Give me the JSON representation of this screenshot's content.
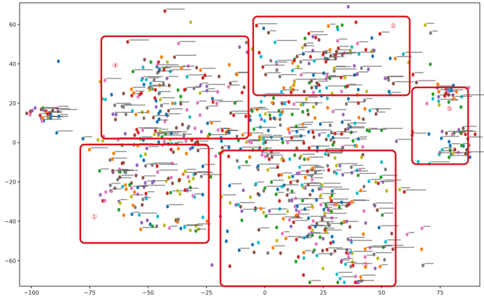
{
  "chart_data": {
    "type": "scatter",
    "title": "",
    "xlabel": "",
    "ylabel": "",
    "xlim": [
      -105,
      92
    ],
    "ylim": [
      -73,
      71
    ],
    "grid": false,
    "x_ticks": [
      -100,
      -75,
      -50,
      -25,
      0,
      25,
      50,
      75
    ],
    "y_ticks": [
      -60,
      -40,
      -20,
      0,
      20,
      40,
      60
    ],
    "x_tick_labels": [
      "−100",
      "−75",
      "−50",
      "−25",
      "0",
      "25",
      "50",
      "75"
    ],
    "y_tick_labels": [
      "−60",
      "−40",
      "−20",
      "0",
      "20",
      "40",
      "60"
    ],
    "palette": [
      "#1f77b4",
      "#ff7f0e",
      "#2ca02c",
      "#d62728",
      "#9467bd",
      "#8c564b",
      "#e377c2",
      "#7f7f7f",
      "#bcbd22",
      "#17becf"
    ],
    "region_color": "#d9121b",
    "regions": [
      {
        "label": "①",
        "x0": -79,
        "x1": -24,
        "y0": -51,
        "y1": -1
      },
      {
        "label": "②",
        "x0": -5,
        "x1": 62,
        "y0": 24,
        "y1": 64
      },
      {
        "label": "③",
        "x0": -19,
        "x1": 56,
        "y0": -73,
        "y1": -4
      },
      {
        "label": "④",
        "x0": -70,
        "x1": -7,
        "y0": 2,
        "y1": 54
      },
      {
        "label": "⑤",
        "x0": 63,
        "x1": 87,
        "y0": -11,
        "y1": 28
      }
    ],
    "region_label_positions": [
      {
        "x": -73,
        "y": -39
      },
      {
        "x": 55,
        "y": 58
      },
      {
        "x": 43,
        "y": -63
      },
      {
        "x": -64,
        "y": 38
      },
      {
        "x": 79,
        "y": 16
      }
    ],
    "clusters": [
      {
        "cx": -94,
        "cy": 15,
        "sx": 4,
        "sy": 2.2,
        "n": 26
      },
      {
        "cx": -60,
        "cy": -22,
        "sx": 7,
        "sy": 7,
        "n": 55
      },
      {
        "cx": -35,
        "cy": -20,
        "sx": 6,
        "sy": 5,
        "n": 25
      },
      {
        "cx": -40,
        "cy": -42,
        "sx": 8,
        "sy": 2.5,
        "n": 22
      },
      {
        "cx": -45,
        "cy": 25,
        "sx": 13,
        "sy": 13,
        "n": 110
      },
      {
        "cx": -38,
        "cy": 0,
        "sx": 14,
        "sy": 4,
        "n": 50
      },
      {
        "cx": 25,
        "cy": 42,
        "sx": 18,
        "sy": 12,
        "n": 120
      },
      {
        "cx": 15,
        "cy": 12,
        "sx": 25,
        "sy": 10,
        "n": 140
      },
      {
        "cx": 18,
        "cy": -30,
        "sx": 20,
        "sy": 16,
        "n": 230
      },
      {
        "cx": 38,
        "cy": -60,
        "sx": 10,
        "sy": 6,
        "n": 45
      },
      {
        "cx": 78,
        "cy": 25,
        "sx": 5,
        "sy": 3,
        "n": 25
      },
      {
        "cx": 80,
        "cy": 0,
        "sx": 5,
        "sy": 5,
        "n": 30
      },
      {
        "cx": 0,
        "cy": -5,
        "sx": 10,
        "sy": 6,
        "n": 40
      }
    ]
  }
}
